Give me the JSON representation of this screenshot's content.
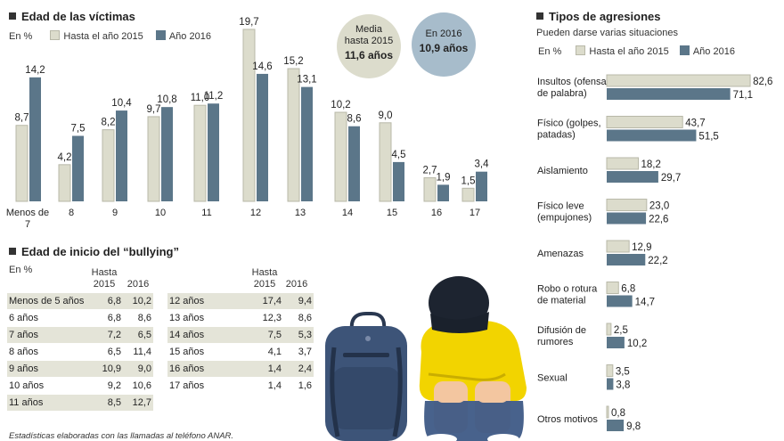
{
  "colors": {
    "light": "#dcdccc",
    "dark": "#5b7689"
  },
  "victims": {
    "title": "Edad de las víctimas",
    "unit": "En %",
    "legend": [
      "Hasta el año 2015",
      "Año 2016"
    ]
  },
  "stats": {
    "media_label": "Media hasta 2015",
    "media_value": "11,6 años",
    "y2016_label": "En 2016",
    "y2016_value": "10,9 años"
  },
  "onset": {
    "title": "Edad de inicio del “bullying”",
    "unit": "En %",
    "col1_header": "Hasta 2015",
    "col2_header": "2016",
    "left_rows": [
      [
        "Menos de 5 años",
        "6,8",
        "10,2"
      ],
      [
        "6 años",
        "6,8",
        "8,6"
      ],
      [
        "7 años",
        "7,2",
        "6,5"
      ],
      [
        "8 años",
        "6,5",
        "11,4"
      ],
      [
        "9 años",
        "10,9",
        "9,0"
      ],
      [
        "10 años",
        "9,2",
        "10,6"
      ],
      [
        "11 años",
        "8,5",
        "12,7"
      ]
    ],
    "right_rows": [
      [
        "12 años",
        "17,4",
        "9,4"
      ],
      [
        "13 años",
        "12,3",
        "8,6"
      ],
      [
        "14 años",
        "7,5",
        "5,3"
      ],
      [
        "15 años",
        "4,1",
        "3,7"
      ],
      [
        "16 años",
        "1,4",
        "2,4"
      ],
      [
        "17 años",
        "1,4",
        "1,6"
      ]
    ],
    "footnote": "Estadísticas elaboradas con las llamadas al teléfono ANAR."
  },
  "aggressions": {
    "title": "Tipos de agresiones",
    "subtitle": "Pueden darse varias situaciones",
    "unit": "En %",
    "legend": [
      "Hasta el año 2015",
      "Año 2016"
    ]
  },
  "chart_data": [
    {
      "type": "bar",
      "title": "Edad de las víctimas",
      "ylabel": "En %",
      "categories": [
        "Menos de 7",
        "8",
        "9",
        "10",
        "11",
        "12",
        "13",
        "14",
        "15",
        "16",
        "17"
      ],
      "series": [
        {
          "name": "Hasta el año 2015",
          "values": [
            8.7,
            4.2,
            8.2,
            9.7,
            11.0,
            19.7,
            15.2,
            10.2,
            9.0,
            2.7,
            1.5
          ],
          "labels": [
            "8,7",
            "4,2",
            "8,2",
            "9,7",
            "11,0",
            "19,7",
            "15,2",
            "10,2",
            "9,0",
            "2,7",
            "1,5"
          ]
        },
        {
          "name": "Año 2016",
          "values": [
            14.2,
            7.5,
            10.4,
            10.8,
            11.2,
            14.6,
            13.1,
            8.6,
            4.5,
            1.9,
            3.4
          ],
          "labels": [
            "14,2",
            "7,5",
            "10,4",
            "10,8",
            "11,2",
            "14,6",
            "13,1",
            "8,6",
            "4,5",
            "1,9",
            "3,4"
          ]
        }
      ]
    },
    {
      "type": "bar",
      "orientation": "horizontal",
      "title": "Tipos de agresiones",
      "subtitle": "Pueden darse varias situaciones",
      "ylabel": "En %",
      "categories": [
        "Insultos (ofensa de palabra)",
        "Físico (golpes, patadas)",
        "Aislamiento",
        "Físico leve (empujones)",
        "Amenazas",
        "Robo o rotura de material",
        "Difusión de rumores",
        "Sexual",
        "Otros motivos"
      ],
      "series": [
        {
          "name": "Hasta el año 2015",
          "values": [
            82.6,
            43.7,
            18.2,
            23.0,
            12.9,
            6.8,
            2.5,
            3.5,
            0.8
          ],
          "labels": [
            "82,6",
            "43,7",
            "18,2",
            "23,0",
            "12,9",
            "6,8",
            "2,5",
            "3,5",
            "0,8"
          ]
        },
        {
          "name": "Año 2016",
          "values": [
            71.1,
            51.5,
            29.7,
            22.6,
            22.2,
            14.7,
            10.2,
            3.8,
            9.8
          ],
          "labels": [
            "71,1",
            "51,5",
            "29,7",
            "22,6",
            "22,2",
            "14,7",
            "10,2",
            "3,8",
            "9,8"
          ]
        }
      ]
    }
  ]
}
